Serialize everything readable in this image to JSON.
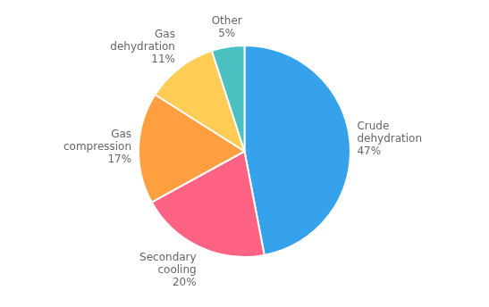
{
  "chart_data": {
    "type": "pie",
    "categories": [
      "Crude\ndehydration",
      "Secondary\ncooling",
      "Gas\ncompression",
      "Gas\ndehydration",
      "Other"
    ],
    "values": [
      47,
      20,
      17,
      11,
      5
    ],
    "value_labels": [
      "47%",
      "20%",
      "17%",
      "11%",
      "5%"
    ],
    "data_labels": true,
    "legend": false
  }
}
